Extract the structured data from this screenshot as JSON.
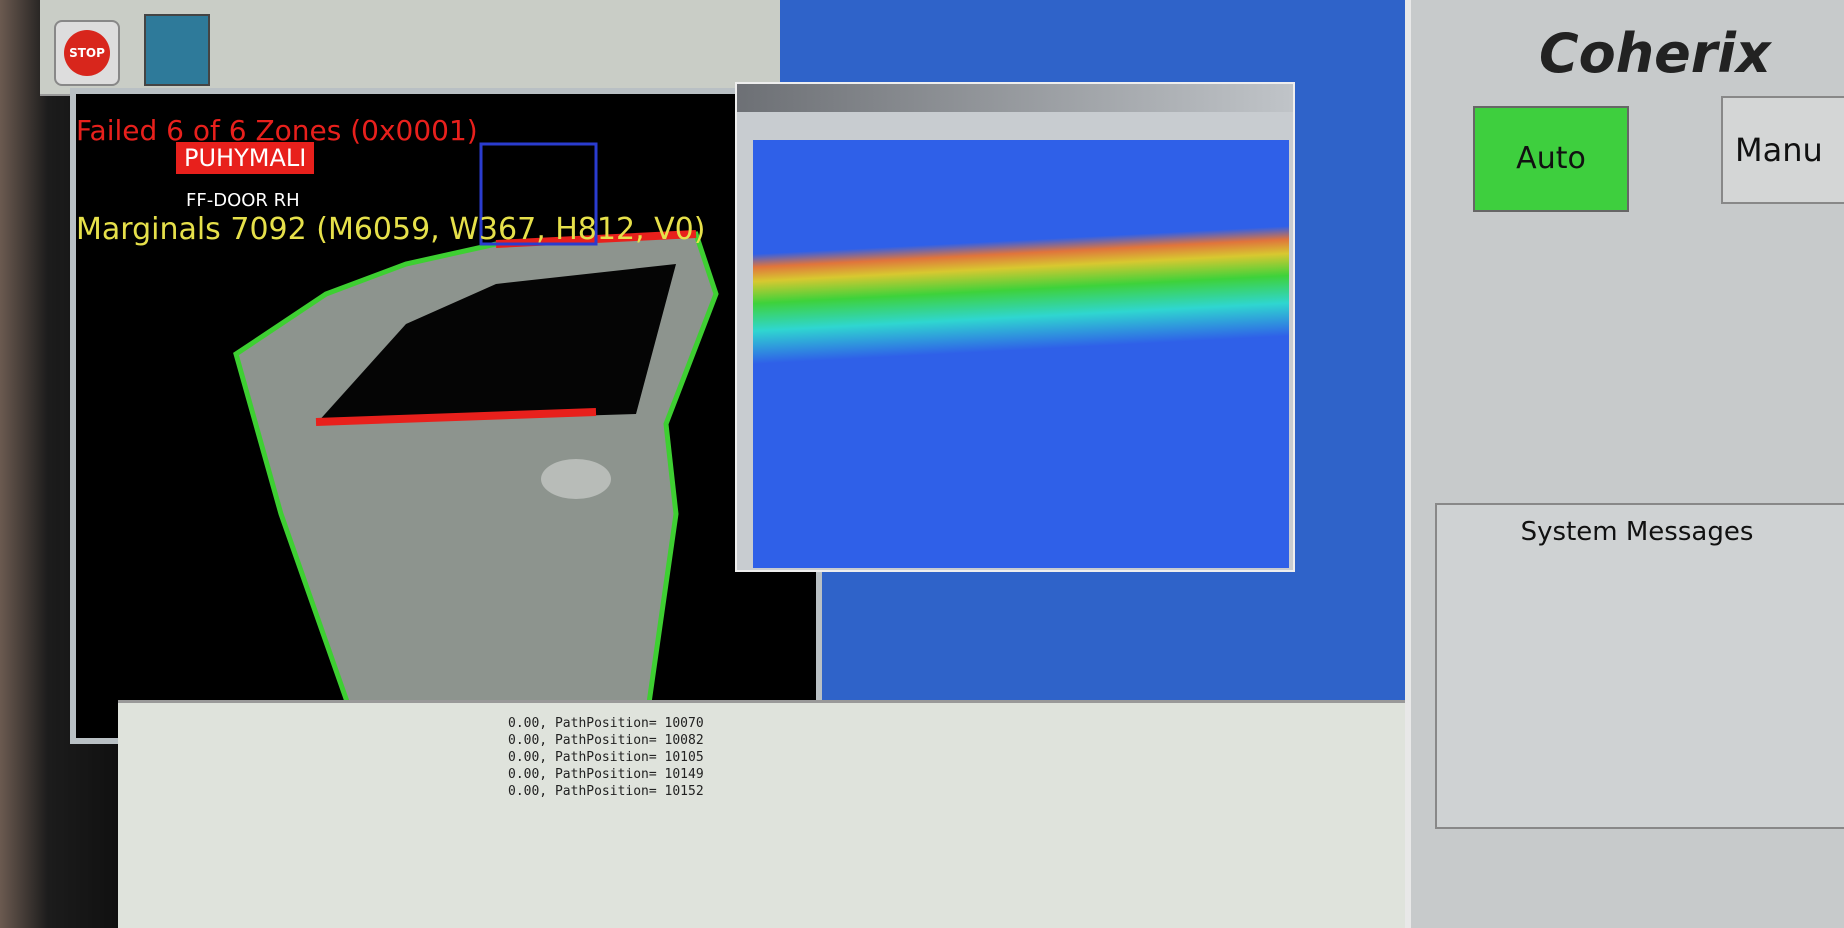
{
  "toolbar": {
    "stop": "STOP"
  },
  "viewer": {
    "status_lines": [
      "Failed 6 of 6 Zones (0x0001)",
      "Marginals 7092 (M6059, W367, H812, V0)"
    ],
    "part_tag": "PUHYMALI",
    "part_name": "FF-DOOR RH"
  },
  "log": {
    "lines": [
      "0.00, PathPosition= 10070",
      "0.00, PathPosition= 10082",
      "0.00, PathPosition= 10105",
      "0.00, PathPosition= 10149",
      "0.00, PathPosition= 10152"
    ]
  },
  "panel": {
    "brand": "Coherix",
    "buttons": [
      "Auto",
      "Manu"
    ],
    "messages_title": "System Messages"
  }
}
